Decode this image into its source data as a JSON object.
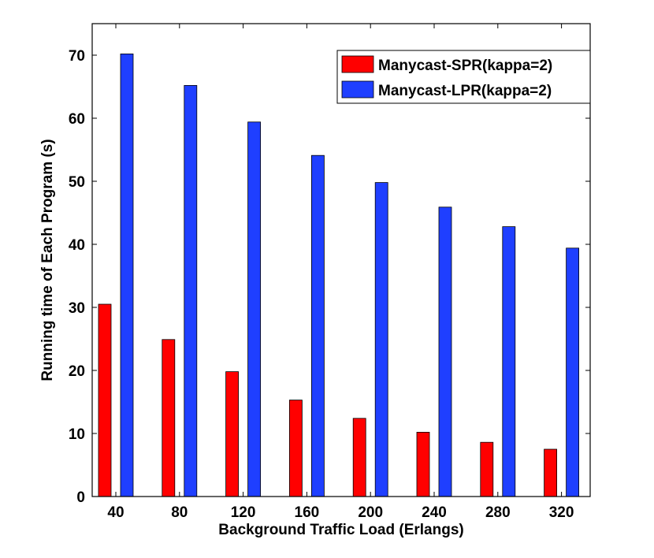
{
  "chart_data": {
    "type": "bar",
    "title": "",
    "xlabel": "Background Traffic Load (Erlangs)",
    "ylabel": "Running time of Each Program (s)",
    "categories": [
      "40",
      "80",
      "120",
      "160",
      "200",
      "240",
      "280",
      "320"
    ],
    "ylim": [
      0,
      75
    ],
    "yticks": [
      "0",
      "10",
      "20",
      "30",
      "40",
      "50",
      "60",
      "70"
    ],
    "grid": false,
    "legend_position": "top-right",
    "series": [
      {
        "name": "Manycast-SPR(kappa=2)",
        "color": "#ff0000",
        "values": [
          30.5,
          24.9,
          19.8,
          15.3,
          12.4,
          10.2,
          8.6,
          7.5
        ]
      },
      {
        "name": "Manycast-LPR(kappa=2)",
        "color": "#1f3fff",
        "values": [
          70.2,
          65.2,
          59.4,
          54.1,
          49.8,
          45.9,
          42.8,
          39.4
        ]
      }
    ]
  }
}
